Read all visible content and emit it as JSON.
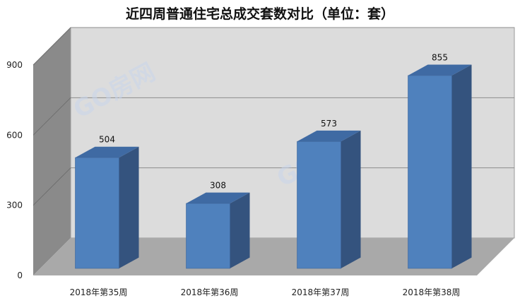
{
  "chart_data": {
    "type": "bar",
    "title": "近四周普通住宅总成交套数对比（单位：套）",
    "categories": [
      "2018年第35周",
      "2018年第36周",
      "2018年第37周",
      "2018年第38周"
    ],
    "values": [
      504,
      308,
      573,
      855
    ],
    "ylim": [
      0,
      900
    ],
    "yticks": [
      0,
      300,
      600,
      900
    ],
    "grid": true,
    "legend": "none",
    "style": "3d-column",
    "bar_color": "#4f81bd",
    "bar_side_color": "#34537e",
    "bar_top_color": "#3f6aa3",
    "wall_color": "#dcdcdc",
    "side_wall_color": "#8a8a8a",
    "floor_color": "#a9a9a9",
    "watermark": "GO房网"
  }
}
